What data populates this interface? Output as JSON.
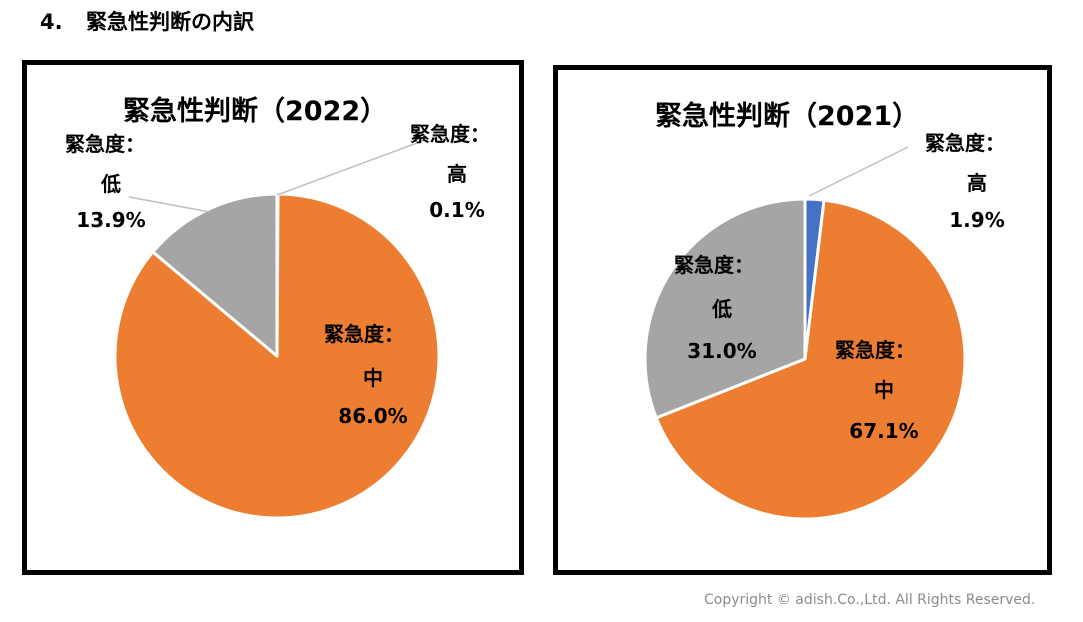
{
  "heading": {
    "number": "4.",
    "text": "緊急性判断の内訳"
  },
  "chart_data": [
    {
      "type": "pie",
      "title": "緊急性判断（2022）",
      "slices": [
        {
          "category": "緊急度：",
          "level": "高",
          "value": 0.1,
          "value_label": "0.1%",
          "color": "#4472c4"
        },
        {
          "category": "緊急度：",
          "level": "中",
          "value": 86.0,
          "value_label": "86.0%",
          "color": "#ed7d31"
        },
        {
          "category": "緊急度：",
          "level": "低",
          "value": 13.9,
          "value_label": "13.9%",
          "color": "#a5a5a5"
        }
      ]
    },
    {
      "type": "pie",
      "title": "緊急性判断（2021）",
      "slices": [
        {
          "category": "緊急度：",
          "level": "高",
          "value": 1.9,
          "value_label": "1.9%",
          "color": "#4472c4"
        },
        {
          "category": "緊急度：",
          "level": "中",
          "value": 67.1,
          "value_label": "67.1%",
          "color": "#ed7d31"
        },
        {
          "category": "緊急度：",
          "level": "低",
          "value": 31.0,
          "value_label": "31.0%",
          "color": "#a5a5a5"
        }
      ]
    }
  ],
  "footer": {
    "copyright": "Copyright © adish.Co.,Ltd.  All Rights Reserved."
  }
}
